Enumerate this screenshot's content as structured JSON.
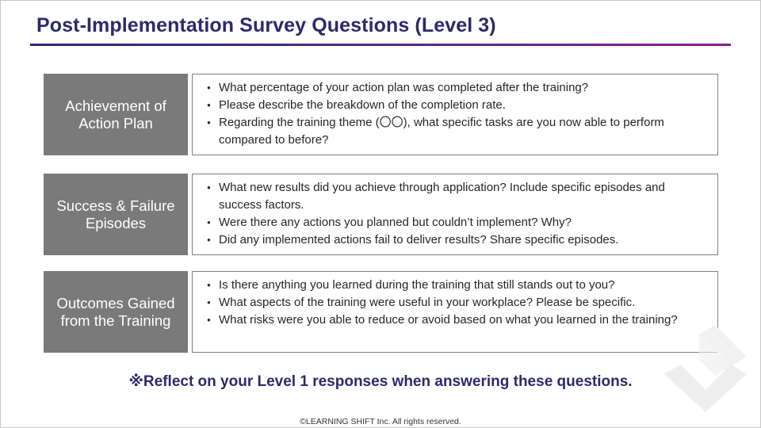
{
  "title": "Post-Implementation Survey Questions (Level 3)",
  "sections": [
    {
      "label": "Achievement of Action Plan",
      "questions": [
        "What percentage of your action plan was completed after the training?",
        "Please describe the breakdown of the completion rate.",
        "Regarding the training theme (〇〇), what specific tasks are you now able to perform compared to before?"
      ]
    },
    {
      "label": "Success & Failure Episodes",
      "questions": [
        "What new results did you achieve through application? Include specific episodes and success factors.",
        "Were there any actions you planned but couldn’t implement? Why?",
        "Did any implemented actions fail to deliver results? Share specific episodes."
      ]
    },
    {
      "label": "Outcomes Gained from the Training",
      "questions": [
        "Is there anything you learned during the training that still stands out to you?",
        "What aspects of the training were useful in your workplace? Please be specific.",
        "What risks were you able to reduce or avoid based on what you learned in the training?"
      ]
    }
  ],
  "note": "※Reflect on your Level 1 responses when answering these questions.",
  "footer": "©LEARNING SHIFT Inc. All rights reserved.",
  "colors": {
    "title": "#2b2a6b",
    "label_bg": "#7a7a7a",
    "rule_start": "#2b2a6b",
    "rule_end": "#8a1e8c"
  },
  "icons": {
    "watermark": "chevron-check-watermark-icon"
  }
}
